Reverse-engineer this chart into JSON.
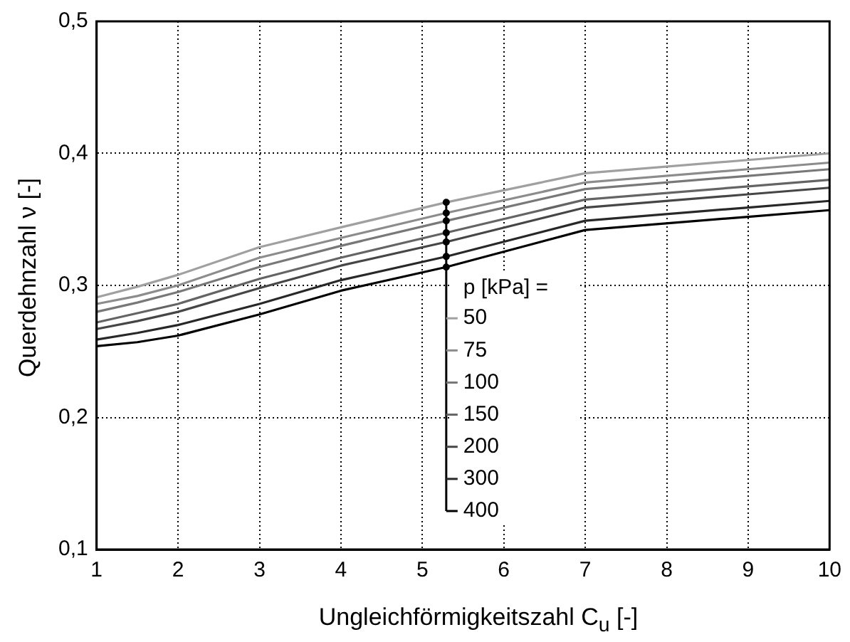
{
  "chart_data": {
    "type": "line",
    "xlabel": "Ungleichförmigkeitszahl C$_{u}$ [-]",
    "ylabel": "Querdehnzahl ν [-]",
    "legend_title": "p [kPa] =",
    "legend": "bottom",
    "grid": true,
    "line_style": "solid",
    "marker": "none",
    "x": [
      1,
      1.5,
      2,
      3,
      4,
      5.3,
      7,
      9,
      10
    ],
    "xlim": [
      1,
      10
    ],
    "xticks": [
      1,
      2,
      3,
      4,
      5,
      6,
      7,
      8,
      9,
      10
    ],
    "ylim": [
      0.1,
      0.5
    ],
    "yticks": [
      {
        "value": 0.1,
        "label": "0,1"
      },
      {
        "value": 0.2,
        "label": "0,2"
      },
      {
        "value": 0.3,
        "label": "0,3"
      },
      {
        "value": 0.4,
        "label": "0,4"
      },
      {
        "value": 0.5,
        "label": "0,5"
      }
    ],
    "series": [
      {
        "name": "50",
        "color": "#a0a0a0",
        "values": [
          0.291,
          0.299,
          0.308,
          0.329,
          0.344,
          0.363,
          0.385,
          0.395,
          0.4
        ]
      },
      {
        "name": "75",
        "color": "#8c8c8c",
        "values": [
          0.286,
          0.292,
          0.3,
          0.321,
          0.336,
          0.355,
          0.378,
          0.388,
          0.393
        ]
      },
      {
        "name": "100",
        "color": "#787878",
        "values": [
          0.28,
          0.287,
          0.295,
          0.314,
          0.33,
          0.349,
          0.373,
          0.383,
          0.388
        ]
      },
      {
        "name": "150",
        "color": "#646464",
        "values": [
          0.272,
          0.279,
          0.286,
          0.305,
          0.321,
          0.34,
          0.365,
          0.375,
          0.38
        ]
      },
      {
        "name": "200",
        "color": "#464646",
        "values": [
          0.267,
          0.273,
          0.28,
          0.298,
          0.315,
          0.333,
          0.359,
          0.369,
          0.374
        ]
      },
      {
        "name": "300",
        "color": "#282828",
        "values": [
          0.259,
          0.264,
          0.27,
          0.286,
          0.304,
          0.322,
          0.349,
          0.359,
          0.364
        ]
      },
      {
        "name": "400",
        "color": "#000000",
        "values": [
          0.254,
          0.257,
          0.262,
          0.278,
          0.296,
          0.314,
          0.342,
          0.352,
          0.357
        ]
      }
    ]
  }
}
